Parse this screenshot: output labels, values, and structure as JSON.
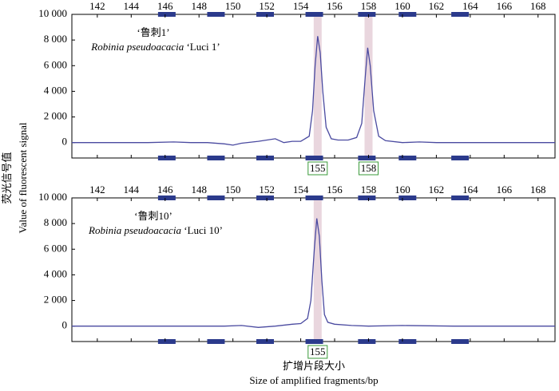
{
  "chart_data": [
    {
      "type": "line",
      "ylabel": [
        "荧光信号值",
        "Value of fluorescent signal"
      ],
      "annotation": {
        "cultivar_cn": "‘鲁刺1’",
        "species": "Robinia pseudoacacia",
        "cultivar": "‘Luci 1’"
      },
      "xlim": [
        140.5,
        169
      ],
      "xticks": [
        142,
        144,
        146,
        148,
        150,
        152,
        154,
        156,
        158,
        160,
        162,
        164,
        166,
        168
      ],
      "ylim": [
        -1200,
        10000
      ],
      "yticks": [
        0,
        {
          "value": 2000,
          "label": "2 000"
        },
        {
          "value": 4000,
          "label": "4 000"
        },
        {
          "value": 6000,
          "label": "6 000"
        },
        {
          "value": 8000,
          "label": "8 000"
        },
        {
          "value": 10000,
          "label": "10 000"
        }
      ],
      "bin_markers": [
        146.1,
        149,
        151.9,
        154.8,
        157.9,
        160.3,
        163.4
      ],
      "peak_labels": [
        155,
        158
      ],
      "series": [
        {
          "color": "#4a4aa0",
          "x": [
            140.5,
            143,
            145,
            146.5,
            147.5,
            148.5,
            149.5,
            150,
            150.5,
            151.5,
            152.5,
            153,
            153.5,
            154,
            154.5,
            154.7,
            154.85,
            155,
            155.15,
            155.3,
            155.5,
            155.8,
            156.2,
            156.8,
            157.3,
            157.6,
            157.8,
            157.95,
            158.1,
            158.3,
            158.6,
            159,
            160,
            161,
            162,
            163,
            164,
            166,
            169
          ],
          "values": [
            0,
            0,
            0,
            50,
            0,
            0,
            -100,
            -200,
            -50,
            100,
            300,
            0,
            100,
            100,
            500,
            2500,
            6000,
            8300,
            7000,
            4000,
            1200,
            300,
            200,
            200,
            400,
            1500,
            5000,
            7400,
            6000,
            2500,
            500,
            150,
            0,
            50,
            0,
            0,
            0,
            0,
            0
          ]
        }
      ]
    },
    {
      "type": "line",
      "xlabel": [
        "扩增片段大小",
        "Size of amplified fragments/bp"
      ],
      "annotation": {
        "cultivar_cn": "‘鲁刺10’",
        "species": "Robinia pseudoacacia",
        "cultivar": "‘Luci 10’"
      },
      "xlim": [
        140.5,
        169
      ],
      "xticks": [
        142,
        144,
        146,
        148,
        150,
        152,
        154,
        156,
        158,
        160,
        162,
        164,
        166,
        168
      ],
      "ylim": [
        -1200,
        10000
      ],
      "yticks": [
        0,
        {
          "value": 2000,
          "label": "2 000"
        },
        {
          "value": 4000,
          "label": "4 000"
        },
        {
          "value": 6000,
          "label": "6 000"
        },
        {
          "value": 8000,
          "label": "8 000"
        },
        {
          "value": 10000,
          "label": "10 000"
        }
      ],
      "bin_markers": [
        146.1,
        149,
        151.9,
        154.8,
        157.9,
        160.3,
        163.4
      ],
      "peak_labels": [
        155
      ],
      "series": [
        {
          "color": "#4a4aa0",
          "x": [
            140.5,
            145,
            148,
            149.5,
            150.5,
            151.5,
            152.5,
            153.5,
            154,
            154.4,
            154.6,
            154.8,
            154.95,
            155.1,
            155.25,
            155.4,
            155.6,
            156,
            157,
            158,
            160,
            163,
            169
          ],
          "values": [
            0,
            0,
            0,
            0,
            50,
            -100,
            0,
            150,
            200,
            600,
            2000,
            6000,
            8400,
            7000,
            3500,
            900,
            300,
            150,
            50,
            0,
            50,
            0,
            0
          ]
        }
      ]
    }
  ]
}
